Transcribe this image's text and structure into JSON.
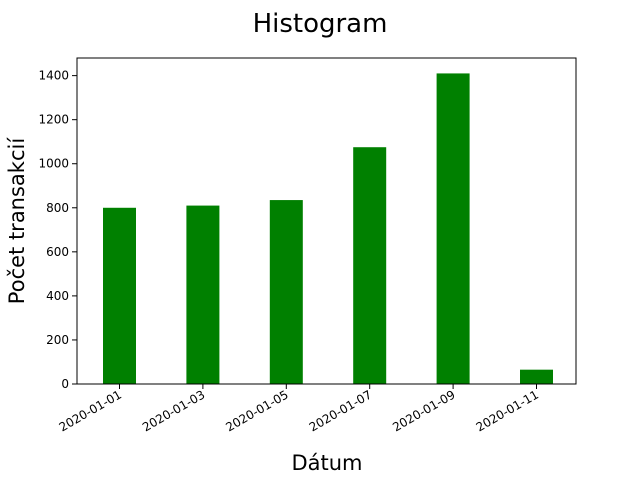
{
  "chart_data": {
    "type": "bar",
    "title": "Histogram",
    "xlabel": "Dátum",
    "ylabel": "Počet transakcií",
    "categories": [
      "2020-01-01",
      "2020-01-03",
      "2020-01-05",
      "2020-01-07",
      "2020-01-09",
      "2020-01-11"
    ],
    "values": [
      800,
      810,
      835,
      1075,
      1410,
      65
    ],
    "ylim": [
      0,
      1480
    ],
    "yticks": [
      0,
      200,
      400,
      600,
      800,
      1000,
      1200,
      1400
    ],
    "bar_color": "#008000",
    "grid": false,
    "legend": "none"
  }
}
